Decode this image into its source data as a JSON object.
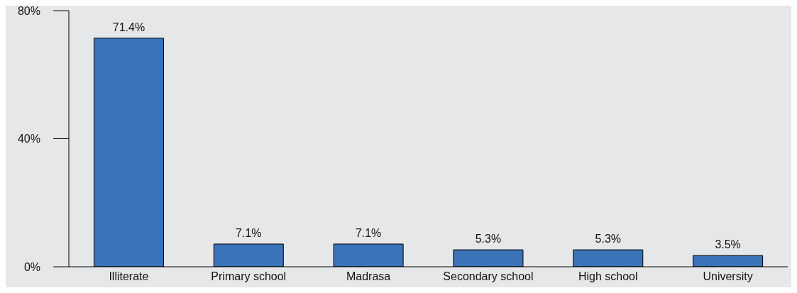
{
  "chart_data": {
    "type": "bar",
    "categories": [
      "Illiterate",
      "Primary school",
      "Madrasa",
      "Secondary school",
      "High school",
      "University"
    ],
    "values": [
      71.4,
      7.1,
      7.1,
      5.3,
      5.3,
      3.5
    ],
    "value_labels": [
      "71.4%",
      "7.1%",
      "7.1%",
      "5.3%",
      "5.3%",
      "3.5%"
    ],
    "color": "#3a73b8",
    "ylim": [
      0,
      80
    ],
    "yticks": [
      {
        "value": 0,
        "label": "0%"
      },
      {
        "value": 40,
        "label": "40%"
      },
      {
        "value": 80,
        "label": "80%"
      }
    ],
    "grid": false,
    "legend": false
  }
}
